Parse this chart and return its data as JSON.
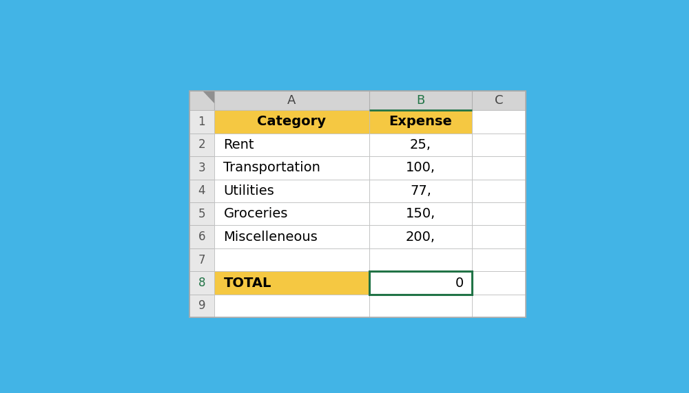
{
  "background_color": "#42b4e6",
  "col_header_bg": "#d4d4d4",
  "row_num_bg": "#e8e8e8",
  "yellow_bg": "#f5c842",
  "green_border": "#217346",
  "selected_col_header_color": "#217346",
  "corner_triangle_color": "#909090",
  "white": "#ffffff",
  "grid_dark": "#000000",
  "grid_light": "#c8c8c8",
  "cells": [
    {
      "row": 1,
      "col": "A",
      "text": "Category",
      "bold": true,
      "bg": "#f5c842",
      "align": "center"
    },
    {
      "row": 1,
      "col": "B",
      "text": "Expense",
      "bold": true,
      "bg": "#f5c842",
      "align": "center"
    },
    {
      "row": 2,
      "col": "A",
      "text": "Rent",
      "bold": false,
      "bg": "#ffffff",
      "align": "left"
    },
    {
      "row": 2,
      "col": "B",
      "text": "25,",
      "bold": false,
      "bg": "#ffffff",
      "align": "center"
    },
    {
      "row": 3,
      "col": "A",
      "text": "Transportation",
      "bold": false,
      "bg": "#ffffff",
      "align": "left"
    },
    {
      "row": 3,
      "col": "B",
      "text": "100,",
      "bold": false,
      "bg": "#ffffff",
      "align": "center"
    },
    {
      "row": 4,
      "col": "A",
      "text": "Utilities",
      "bold": false,
      "bg": "#ffffff",
      "align": "left"
    },
    {
      "row": 4,
      "col": "B",
      "text": "77,",
      "bold": false,
      "bg": "#ffffff",
      "align": "center"
    },
    {
      "row": 5,
      "col": "A",
      "text": "Groceries",
      "bold": false,
      "bg": "#ffffff",
      "align": "left"
    },
    {
      "row": 5,
      "col": "B",
      "text": "150,",
      "bold": false,
      "bg": "#ffffff",
      "align": "center"
    },
    {
      "row": 6,
      "col": "A",
      "text": "Miscelleneous",
      "bold": false,
      "bg": "#ffffff",
      "align": "left"
    },
    {
      "row": 6,
      "col": "B",
      "text": "200,",
      "bold": false,
      "bg": "#ffffff",
      "align": "center"
    },
    {
      "row": 7,
      "col": "A",
      "text": "",
      "bold": false,
      "bg": "#ffffff",
      "align": "left"
    },
    {
      "row": 7,
      "col": "B",
      "text": "",
      "bold": false,
      "bg": "#ffffff",
      "align": "center"
    },
    {
      "row": 8,
      "col": "A",
      "text": "TOTAL",
      "bold": true,
      "bg": "#f5c842",
      "align": "left"
    },
    {
      "row": 8,
      "col": "B",
      "text": "0",
      "bold": false,
      "bg": "#ffffff",
      "align": "right"
    },
    {
      "row": 9,
      "col": "A",
      "text": "",
      "bold": false,
      "bg": "#ffffff",
      "align": "left"
    },
    {
      "row": 9,
      "col": "B",
      "text": "",
      "bold": false,
      "bg": "#ffffff",
      "align": "center"
    }
  ]
}
